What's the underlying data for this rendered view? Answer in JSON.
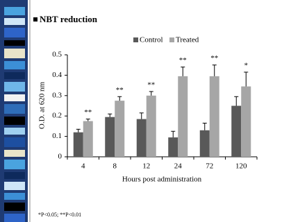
{
  "chart_data": {
    "type": "bar",
    "title": "NBT reduction",
    "categories": [
      "4",
      "8",
      "12",
      "24",
      "72",
      "120"
    ],
    "series": [
      {
        "name": "Control",
        "color": "#595959",
        "values": [
          0.12,
          0.195,
          0.185,
          0.095,
          0.13,
          0.25
        ],
        "errors": [
          0.015,
          0.015,
          0.03,
          0.03,
          0.035,
          0.045
        ]
      },
      {
        "name": "Treated",
        "color": "#a6a6a6",
        "values": [
          0.175,
          0.275,
          0.3,
          0.395,
          0.395,
          0.345
        ],
        "errors": [
          0.01,
          0.02,
          0.02,
          0.045,
          0.055,
          0.07
        ]
      }
    ],
    "significance": [
      "**",
      "**",
      "**",
      "**",
      "**",
      "*"
    ],
    "xlabel": "Hours post administration",
    "ylabel": "O.D. at 620 nm",
    "ylim": [
      0,
      0.5
    ],
    "yticks": [
      0,
      0.1,
      0.2,
      0.3,
      0.4,
      0.5
    ],
    "footnote": "*P<0.05; **P<0.01"
  }
}
